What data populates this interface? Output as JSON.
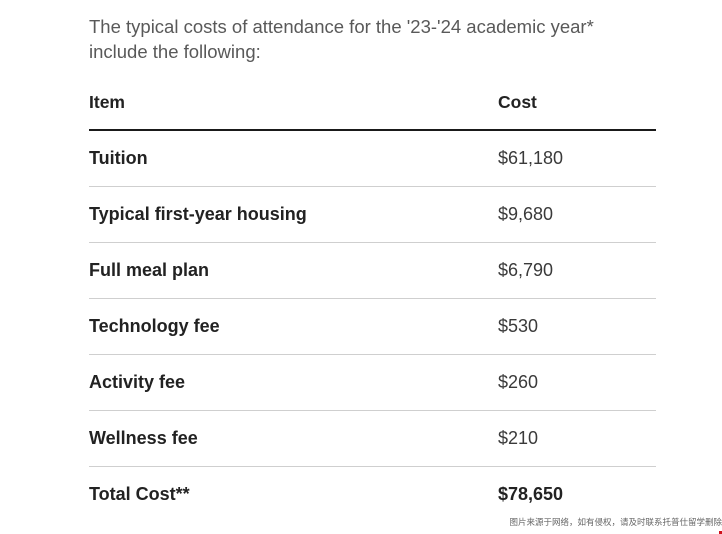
{
  "intro_text": "The typical costs of attendance for the '23-'24 academic year* include the following:",
  "table": {
    "headers": [
      "Item",
      "Cost"
    ],
    "rows": [
      {
        "item": "Tuition",
        "cost": "$61,180"
      },
      {
        "item": "Typical first-year housing",
        "cost": "$9,680"
      },
      {
        "item": "Full meal plan",
        "cost": "$6,790"
      },
      {
        "item": "Technology fee",
        "cost": "$530"
      },
      {
        "item": "Activity fee",
        "cost": "$260"
      },
      {
        "item": "Wellness fee",
        "cost": "$210"
      },
      {
        "item": "Total Cost**",
        "cost": "$78,650"
      }
    ]
  },
  "watermark_text": "图片来源于网络，如有侵权，请及时联系托普仕留学删除"
}
